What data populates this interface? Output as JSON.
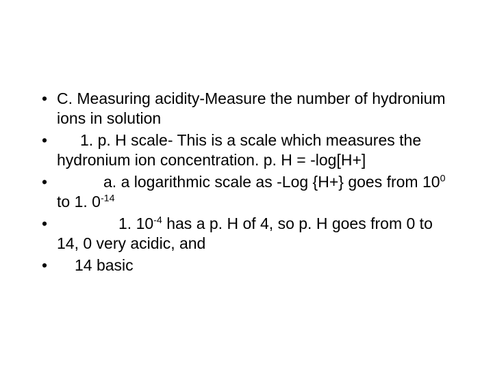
{
  "slide": {
    "background_color": "#ffffff",
    "text_color": "#000000",
    "font_family": "Arial",
    "font_size_pt": 17,
    "bullets": [
      {
        "indent": 0,
        "text": "C. Measuring acidity-Measure the number of hydronium ions in solution"
      },
      {
        "indent": 1,
        "text_pre": "1. p. H scale- This is a scale which measures the hydronium ion concentration. p. H = -log[H+]"
      },
      {
        "indent": 2,
        "text_pre": "a. a logarithmic scale  as  -Log {H+}  goes from 10",
        "sup1": "0",
        "mid1": " to 1. 0",
        "sup2": "-14"
      },
      {
        "indent": 3,
        "text_pre": "1. 10",
        "sup1": "-4",
        "mid1": " has a p. H of 4, so p. H goes from 0 to 14, 0 very acidic, and"
      },
      {
        "indent": 4,
        "text_pre": "14 basic"
      }
    ]
  }
}
